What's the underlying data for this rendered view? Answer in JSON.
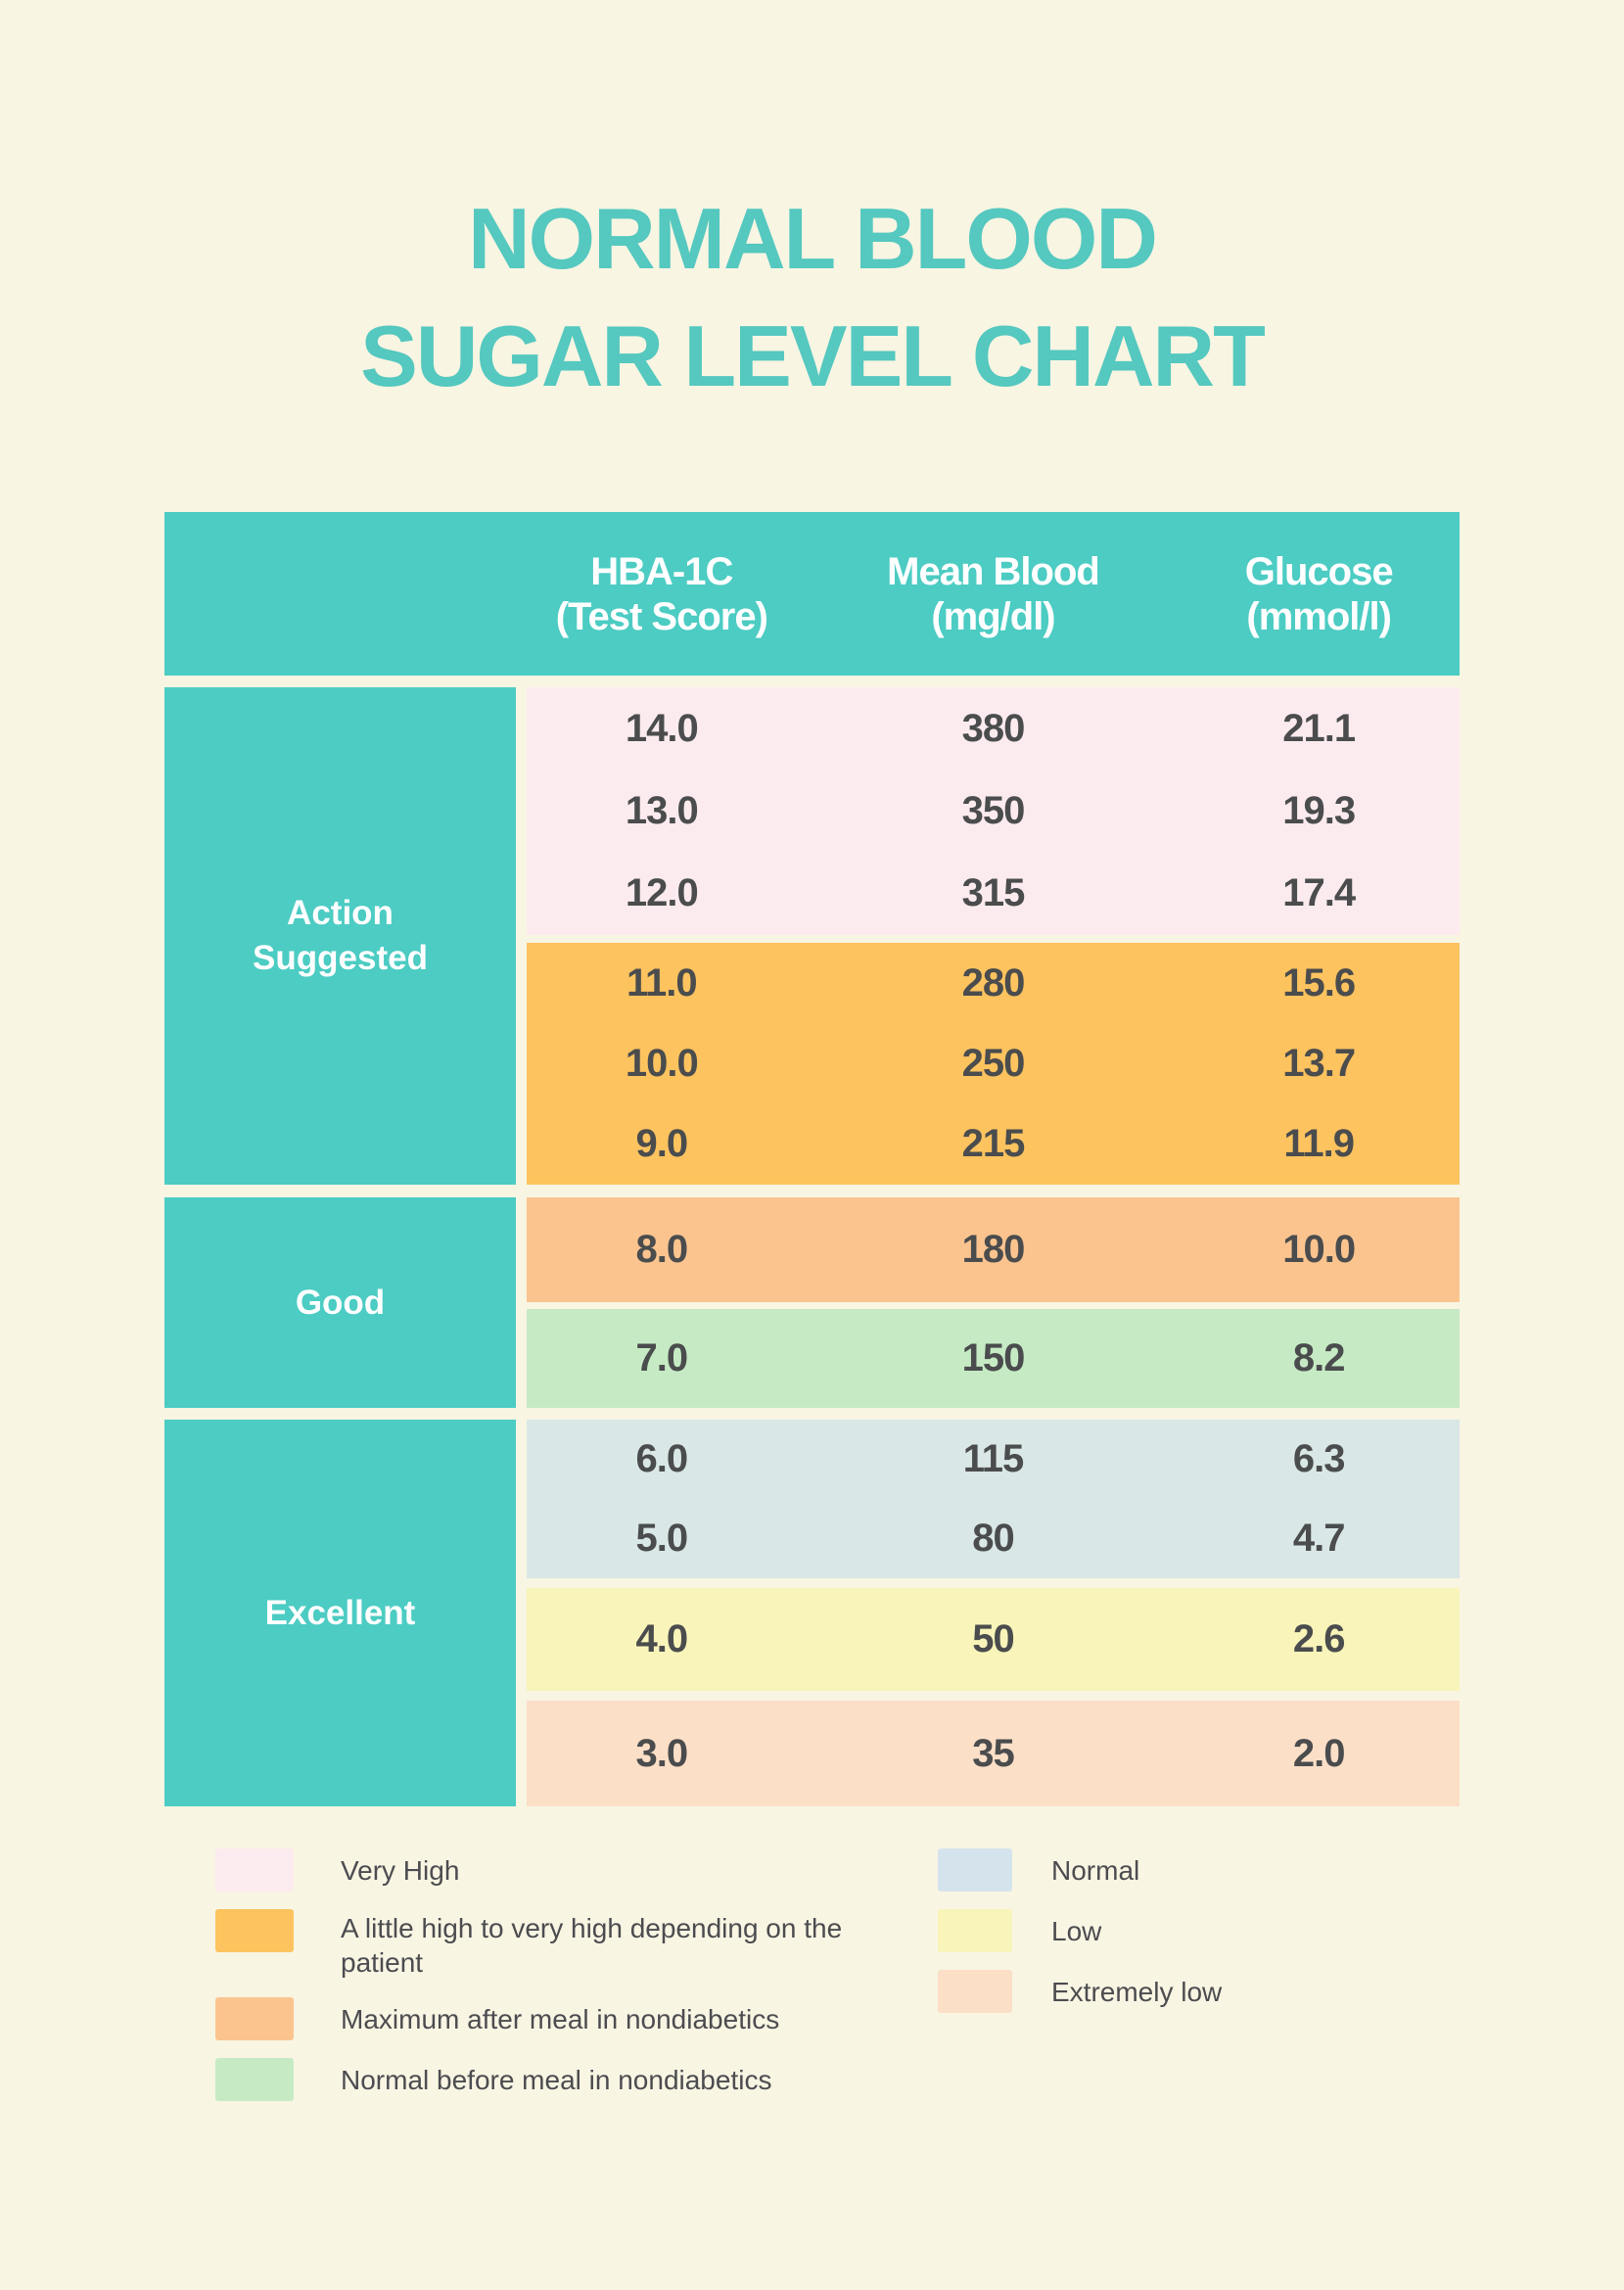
{
  "page": {
    "title_line1": "NORMAL BLOOD",
    "title_line2": "SUGAR LEVEL CHART"
  },
  "colors": {
    "page_bg": "#f8f5e3",
    "title": "#55c8bf",
    "teal": "#4cccc3",
    "header_text": "#ffffff",
    "value_text": "#4a4c4d",
    "legend_text": "#4c4c50",
    "very_high": "#fcebee",
    "little_high": "#fdc35f",
    "max_after_meal": "#fbc48f",
    "normal_before_meal": "#c6ebc4",
    "normal": "#d9e7e6",
    "low": "#f9f4b9",
    "extremely_low": "#fcdfc7",
    "normal_legend": "#d5e4ec"
  },
  "table": {
    "header": {
      "columns": [
        {
          "line1": "HBA-1C",
          "line2": "(Test Score)"
        },
        {
          "line1": "Mean Blood",
          "line2": "(mg/dl)"
        },
        {
          "line1": "Glucose",
          "line2": "(mmol/l)"
        }
      ]
    },
    "sections": [
      {
        "label": "Action Suggested",
        "blocks": [
          {
            "level": "Very High",
            "rows": [
              [
                "14.0",
                "380",
                "21.1"
              ],
              [
                "13.0",
                "350",
                "19.3"
              ],
              [
                "12.0",
                "315",
                "17.4"
              ]
            ]
          },
          {
            "level": "A little high to very high depending on the patient",
            "rows": [
              [
                "11.0",
                "280",
                "15.6"
              ],
              [
                "10.0",
                "250",
                "13.7"
              ],
              [
                "9.0",
                "215",
                "11.9"
              ]
            ]
          }
        ]
      },
      {
        "label": "Good",
        "blocks": [
          {
            "level": "Maximum after meal in nondiabetics",
            "rows": [
              [
                "8.0",
                "180",
                "10.0"
              ]
            ]
          },
          {
            "level": "Normal before meal in nondiabetics",
            "rows": [
              [
                "7.0",
                "150",
                "8.2"
              ]
            ]
          }
        ]
      },
      {
        "label": "Excellent",
        "blocks": [
          {
            "level": "Normal",
            "rows": [
              [
                "6.0",
                "115",
                "6.3"
              ],
              [
                "5.0",
                "80",
                "4.7"
              ]
            ]
          },
          {
            "level": "Low",
            "rows": [
              [
                "4.0",
                "50",
                "2.6"
              ]
            ]
          },
          {
            "level": "Extremely low",
            "rows": [
              [
                "3.0",
                "35",
                "2.0"
              ]
            ]
          }
        ]
      }
    ]
  },
  "legend": {
    "left": [
      {
        "label": "Very High"
      },
      {
        "label": "A little high to very high depending on the patient"
      },
      {
        "label": "Maximum after meal in nondiabetics"
      },
      {
        "label": "Normal before meal in nondiabetics"
      }
    ],
    "right": [
      {
        "label": "Normal"
      },
      {
        "label": "Low"
      },
      {
        "label": "Extremely low"
      }
    ]
  },
  "chart_data": {
    "type": "table",
    "title": "NORMAL BLOOD SUGAR LEVEL CHART",
    "columns": [
      "HBA-1C (Test Score)",
      "Mean Blood (mg/dl)",
      "Glucose (mmol/l)"
    ],
    "rows": [
      {
        "category": "Action Suggested",
        "level": "Very High",
        "hba1c": 14.0,
        "mean_blood": 380,
        "glucose": 21.1
      },
      {
        "category": "Action Suggested",
        "level": "Very High",
        "hba1c": 13.0,
        "mean_blood": 350,
        "glucose": 19.3
      },
      {
        "category": "Action Suggested",
        "level": "Very High",
        "hba1c": 12.0,
        "mean_blood": 315,
        "glucose": 17.4
      },
      {
        "category": "Action Suggested",
        "level": "A little high to very high depending on the patient",
        "hba1c": 11.0,
        "mean_blood": 280,
        "glucose": 15.6
      },
      {
        "category": "Action Suggested",
        "level": "A little high to very high depending on the patient",
        "hba1c": 10.0,
        "mean_blood": 250,
        "glucose": 13.7
      },
      {
        "category": "Action Suggested",
        "level": "A little high to very high depending on the patient",
        "hba1c": 9.0,
        "mean_blood": 215,
        "glucose": 11.9
      },
      {
        "category": "Good",
        "level": "Maximum after meal in nondiabetics",
        "hba1c": 8.0,
        "mean_blood": 180,
        "glucose": 10.0
      },
      {
        "category": "Good",
        "level": "Normal before meal in nondiabetics",
        "hba1c": 7.0,
        "mean_blood": 150,
        "glucose": 8.2
      },
      {
        "category": "Excellent",
        "level": "Normal",
        "hba1c": 6.0,
        "mean_blood": 115,
        "glucose": 6.3
      },
      {
        "category": "Excellent",
        "level": "Normal",
        "hba1c": 5.0,
        "mean_blood": 80,
        "glucose": 4.7
      },
      {
        "category": "Excellent",
        "level": "Low",
        "hba1c": 4.0,
        "mean_blood": 50,
        "glucose": 2.6
      },
      {
        "category": "Excellent",
        "level": "Extremely low",
        "hba1c": 3.0,
        "mean_blood": 35,
        "glucose": 2.0
      }
    ],
    "legend": [
      "Very High",
      "A little high to very high depending on the patient",
      "Maximum after meal in nondiabetics",
      "Normal before meal in nondiabetics",
      "Normal",
      "Low",
      "Extremely low"
    ]
  }
}
